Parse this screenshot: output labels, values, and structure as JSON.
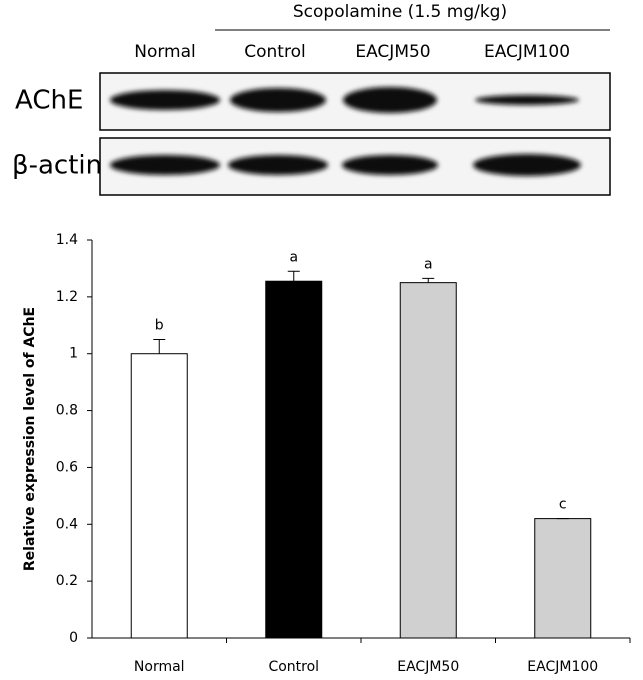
{
  "blot": {
    "group_label": "Scopolamine (1.5 mg/kg)",
    "lanes": [
      "Normal",
      "Control",
      "EACJM50",
      "EACJM100"
    ],
    "rows": [
      "AChE",
      "β-actin"
    ]
  },
  "chart_data": {
    "type": "bar",
    "y_label": "Relative expression level of AChE",
    "categories": [
      "Normal",
      "Control",
      "EACJM50",
      "EACJM100"
    ],
    "values": [
      1.0,
      1.255,
      1.25,
      0.42
    ],
    "errors": [
      0.05,
      0.035,
      0.015,
      0
    ],
    "significance_labels": [
      "b",
      "a",
      "a",
      "c"
    ],
    "colors": [
      "#ffffff",
      "#000000",
      "#d0d0d0",
      "#d0d0d0"
    ],
    "ylim": [
      0,
      1.4
    ],
    "yticks": [
      0,
      0.2,
      0.4,
      0.6,
      0.8,
      1,
      1.2,
      1.4
    ],
    "grid": false
  }
}
